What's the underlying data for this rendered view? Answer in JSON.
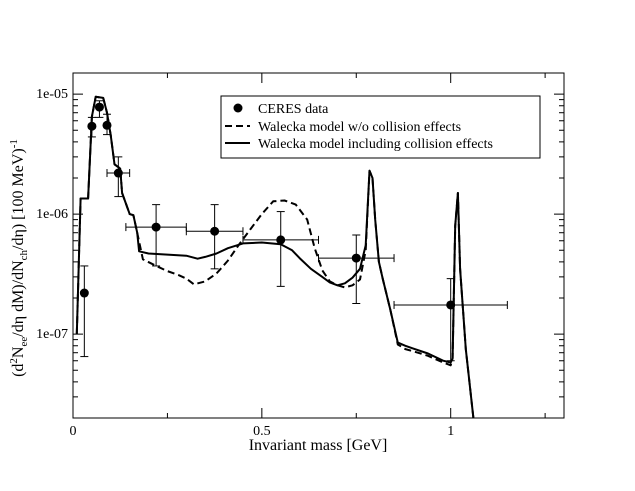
{
  "chart_data": {
    "type": "line",
    "title": "",
    "xlabel": "Invariant mass [GeV]",
    "ylabel_parts": {
      "p1": "(d",
      "sup1": "2",
      "p2": "N",
      "sub1": "ee",
      "p3": "/dη  dM)/dN",
      "sub2": "ch",
      "p4": "/dη) [100 MeV)",
      "sup2": "-1"
    },
    "xlim": [
      0,
      1.3
    ],
    "ylim": [
      2e-08,
      1.5e-05
    ],
    "yscale": "log",
    "x_ticks": [
      {
        "value": 0,
        "label": "0"
      },
      {
        "value": 0.5,
        "label": "0.5"
      },
      {
        "value": 1,
        "label": "1"
      }
    ],
    "x_minor_ticks": [
      0.25,
      0.75,
      1.25
    ],
    "y_ticks": [
      {
        "value": 1e-05,
        "label": "1e-05"
      },
      {
        "value": 1e-06,
        "label": "1e-06"
      },
      {
        "value": 1e-07,
        "label": "1e-07"
      }
    ],
    "legend_position": "top-right",
    "series": [
      {
        "name": "CERES data",
        "style": "points",
        "points": [
          {
            "x": 0.03,
            "y": 2.2e-07,
            "yerr_low": 6.5e-08,
            "yerr_high": 3.7e-07
          },
          {
            "x": 0.05,
            "y": 5.4e-06,
            "yerr_low": 4.4e-06,
            "yerr_high": 6.4e-06
          },
          {
            "x": 0.07,
            "y": 7.8e-06,
            "yerr_low": 6.4e-06,
            "yerr_high": 8.8e-06
          },
          {
            "x": 0.09,
            "y": 5.5e-06,
            "yerr_low": 4.6e-06,
            "yerr_high": 6.8e-06
          },
          {
            "x": 0.12,
            "y": 2.2e-06,
            "yerr_low": 1.4e-06,
            "yerr_high": 3e-06,
            "xerr": 0.03
          },
          {
            "x": 0.22,
            "y": 7.8e-07,
            "yerr_low": 3.7e-07,
            "yerr_high": 1.2e-06,
            "xerr": 0.08
          },
          {
            "x": 0.375,
            "y": 7.2e-07,
            "yerr_low": 3.5e-07,
            "yerr_high": 1.2e-06,
            "xerr": 0.075
          },
          {
            "x": 0.55,
            "y": 6.1e-07,
            "yerr_low": 2.5e-07,
            "yerr_high": 1.05e-06,
            "xerr": 0.1
          },
          {
            "x": 0.75,
            "y": 4.3e-07,
            "yerr_low": 1.8e-07,
            "yerr_high": 6.7e-07,
            "xerr": 0.1
          },
          {
            "x": 1.0,
            "y": 1.75e-07,
            "yerr_low": 6e-08,
            "yerr_high": 2.9e-07,
            "xerr": 0.15
          }
        ]
      },
      {
        "name": "Walecka model w/o collision effects",
        "style": "dashed",
        "points": [
          [
            0.01,
            1e-07
          ],
          [
            0.02,
            1.35e-06
          ],
          [
            0.04,
            1.35e-06
          ],
          [
            0.05,
            6.5e-06
          ],
          [
            0.06,
            9.5e-06
          ],
          [
            0.08,
            9.3e-06
          ],
          [
            0.09,
            7e-06
          ],
          [
            0.1,
            4.5e-06
          ],
          [
            0.11,
            2.6e-06
          ],
          [
            0.125,
            2.4e-06
          ],
          [
            0.13,
            1.5e-06
          ],
          [
            0.15,
            1e-06
          ],
          [
            0.16,
            9.8e-07
          ],
          [
            0.17,
            7e-07
          ],
          [
            0.185,
            4.2e-07
          ],
          [
            0.22,
            3.7e-07
          ],
          [
            0.25,
            3.35e-07
          ],
          [
            0.28,
            3.1e-07
          ],
          [
            0.3,
            2.9e-07
          ],
          [
            0.32,
            2.6e-07
          ],
          [
            0.35,
            2.75e-07
          ],
          [
            0.38,
            3.2e-07
          ],
          [
            0.41,
            4.1e-07
          ],
          [
            0.44,
            5.6e-07
          ],
          [
            0.47,
            7.5e-07
          ],
          [
            0.5,
            1e-06
          ],
          [
            0.53,
            1.28e-06
          ],
          [
            0.56,
            1.3e-06
          ],
          [
            0.59,
            1.2e-06
          ],
          [
            0.62,
            9e-07
          ],
          [
            0.64,
            5.2e-07
          ],
          [
            0.66,
            3.4e-07
          ],
          [
            0.68,
            2.75e-07
          ],
          [
            0.7,
            2.55e-07
          ],
          [
            0.72,
            2.45e-07
          ],
          [
            0.74,
            2.55e-07
          ],
          [
            0.76,
            2.85e-07
          ],
          [
            0.775,
            5e-07
          ],
          [
            0.785,
            2.3e-06
          ],
          [
            0.793,
            2e-06
          ],
          [
            0.8,
            9e-07
          ],
          [
            0.81,
            4e-07
          ],
          [
            0.82,
            2.9e-07
          ],
          [
            0.84,
            1.6e-07
          ],
          [
            0.86,
            8.2e-08
          ],
          [
            0.88,
            7.5e-08
          ],
          [
            0.9,
            7.2e-08
          ],
          [
            0.94,
            6.6e-08
          ],
          [
            0.98,
            5.8e-08
          ],
          [
            1.0,
            5.5e-08
          ],
          [
            1.005,
            6.3e-08
          ],
          [
            1.012,
            8e-07
          ],
          [
            1.019,
            1.5e-06
          ],
          [
            1.025,
            3.5e-07
          ],
          [
            1.04,
            7.5e-08
          ],
          [
            1.06,
            2e-08
          ]
        ]
      },
      {
        "name": "Walecka model including collision effects",
        "style": "solid",
        "points": [
          [
            0.01,
            1e-07
          ],
          [
            0.02,
            1.35e-06
          ],
          [
            0.04,
            1.35e-06
          ],
          [
            0.05,
            6.5e-06
          ],
          [
            0.06,
            9.5e-06
          ],
          [
            0.08,
            9.3e-06
          ],
          [
            0.09,
            7e-06
          ],
          [
            0.1,
            4.5e-06
          ],
          [
            0.11,
            2.6e-06
          ],
          [
            0.125,
            2.4e-06
          ],
          [
            0.13,
            1.5e-06
          ],
          [
            0.15,
            1e-06
          ],
          [
            0.16,
            9.8e-07
          ],
          [
            0.17,
            7e-07
          ],
          [
            0.175,
            4.9e-07
          ],
          [
            0.2,
            4.7e-07
          ],
          [
            0.25,
            4.6e-07
          ],
          [
            0.3,
            4.5e-07
          ],
          [
            0.33,
            4.25e-07
          ],
          [
            0.35,
            4.4e-07
          ],
          [
            0.38,
            4.7e-07
          ],
          [
            0.41,
            5.2e-07
          ],
          [
            0.45,
            5.7e-07
          ],
          [
            0.5,
            5.8e-07
          ],
          [
            0.55,
            5.6e-07
          ],
          [
            0.58,
            5e-07
          ],
          [
            0.6,
            4.3e-07
          ],
          [
            0.63,
            3.5e-07
          ],
          [
            0.66,
            3e-07
          ],
          [
            0.68,
            2.7e-07
          ],
          [
            0.7,
            2.55e-07
          ],
          [
            0.72,
            2.65e-07
          ],
          [
            0.74,
            2.95e-07
          ],
          [
            0.76,
            3.5e-07
          ],
          [
            0.775,
            5.5e-07
          ],
          [
            0.785,
            2.3e-06
          ],
          [
            0.793,
            2e-06
          ],
          [
            0.8,
            9e-07
          ],
          [
            0.81,
            4e-07
          ],
          [
            0.82,
            2.9e-07
          ],
          [
            0.84,
            1.6e-07
          ],
          [
            0.86,
            8.5e-08
          ],
          [
            0.88,
            8e-08
          ],
          [
            0.9,
            7.6e-08
          ],
          [
            0.94,
            6.9e-08
          ],
          [
            0.98,
            6e-08
          ],
          [
            1.0,
            5.8e-08
          ],
          [
            1.005,
            6.3e-08
          ],
          [
            1.012,
            8e-07
          ],
          [
            1.019,
            1.5e-06
          ],
          [
            1.025,
            3.5e-07
          ],
          [
            1.04,
            7.5e-08
          ],
          [
            1.06,
            2e-08
          ]
        ]
      }
    ]
  }
}
